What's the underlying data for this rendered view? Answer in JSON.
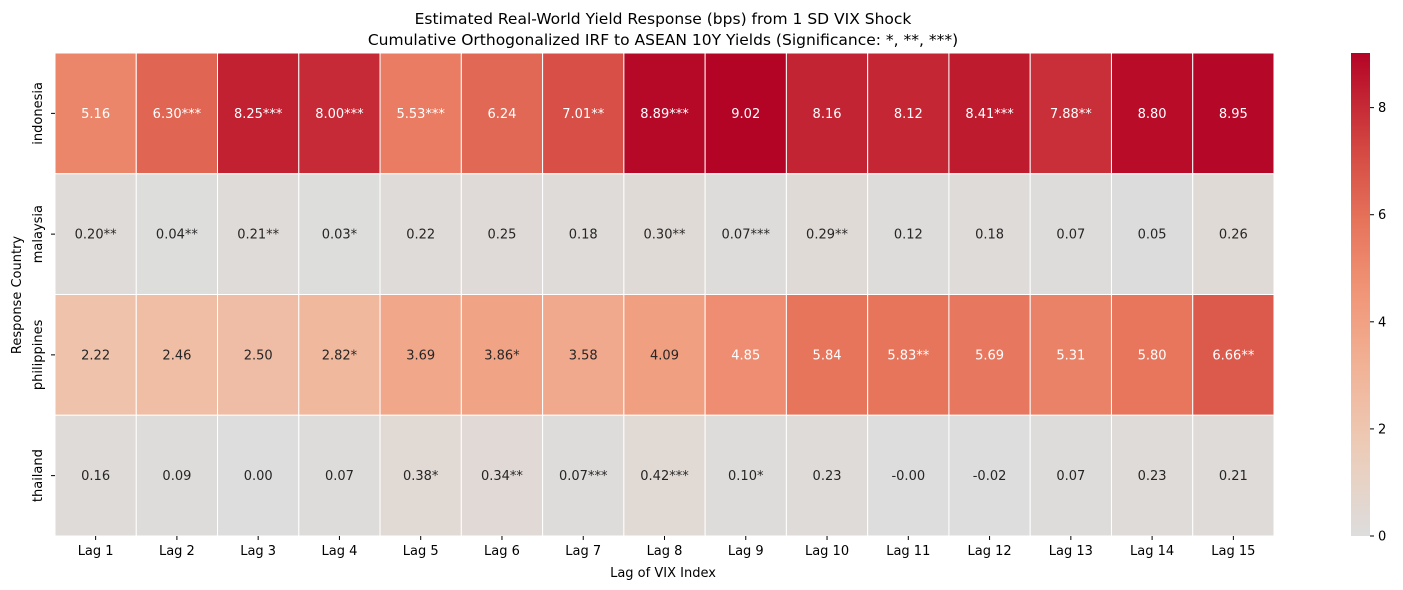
{
  "chart_data": {
    "type": "heatmap",
    "title": "Estimated Real-World Yield Response (bps) from 1 SD VIX Shock",
    "subtitle": "Cumulative Orthogonalized IRF to ASEAN 10Y Yields (Significance: *, **, ***)",
    "xlabel": "Lag of VIX Index",
    "ylabel": "Response Country",
    "x_categories": [
      "Lag 1",
      "Lag 2",
      "Lag 3",
      "Lag 4",
      "Lag 5",
      "Lag 6",
      "Lag 7",
      "Lag 8",
      "Lag 9",
      "Lag 10",
      "Lag 11",
      "Lag 12",
      "Lag 13",
      "Lag 14",
      "Lag 15"
    ],
    "y_categories": [
      "indonesia",
      "malaysia",
      "philippines",
      "thailand"
    ],
    "values": [
      [
        5.16,
        6.3,
        8.25,
        8.0,
        5.53,
        6.24,
        7.01,
        8.89,
        9.02,
        8.16,
        8.12,
        8.41,
        7.88,
        8.8,
        8.95
      ],
      [
        0.2,
        0.04,
        0.21,
        0.03,
        0.22,
        0.25,
        0.18,
        0.3,
        0.07,
        0.29,
        0.12,
        0.18,
        0.07,
        0.05,
        0.26
      ],
      [
        2.22,
        2.46,
        2.5,
        2.82,
        3.69,
        3.86,
        3.58,
        4.09,
        4.85,
        5.84,
        5.83,
        5.69,
        5.31,
        5.8,
        6.66
      ],
      [
        0.16,
        0.09,
        0.0,
        0.07,
        0.38,
        0.34,
        0.07,
        0.42,
        0.1,
        0.23,
        -0.0,
        -0.02,
        0.07,
        0.23,
        0.21
      ]
    ],
    "annotations": [
      [
        "5.16",
        "6.30***",
        "8.25***",
        "8.00***",
        "5.53***",
        "6.24",
        "7.01**",
        "8.89***",
        "9.02",
        "8.16",
        "8.12",
        "8.41***",
        "7.88**",
        "8.80",
        "8.95"
      ],
      [
        "0.20**",
        "0.04**",
        "0.21**",
        "0.03*",
        "0.22",
        "0.25",
        "0.18",
        "0.30**",
        "0.07***",
        "0.29**",
        "0.12",
        "0.18",
        "0.07",
        "0.05",
        "0.26"
      ],
      [
        "2.22",
        "2.46",
        "2.50",
        "2.82*",
        "3.69",
        "3.86*",
        "3.58",
        "4.09",
        "4.85",
        "5.84",
        "5.83**",
        "5.69",
        "5.31",
        "5.80",
        "6.66**"
      ],
      [
        "0.16",
        "0.09",
        "0.00",
        "0.07",
        "0.38*",
        "0.34**",
        "0.07***",
        "0.42***",
        "0.10*",
        "0.23",
        "-0.00",
        "-0.02",
        "0.07",
        "0.23",
        "0.21"
      ]
    ],
    "colorscale": {
      "name": "coolwarm",
      "center": 0,
      "vmin": 0,
      "vmax": 9.02,
      "ticks": [
        "0",
        "2",
        "4",
        "6",
        "8"
      ],
      "tick_values": [
        0,
        2,
        4,
        6,
        8
      ],
      "low_color": "#dddddd",
      "high_color": "#b40426"
    },
    "grid": false,
    "legend": "colorbar-right"
  }
}
